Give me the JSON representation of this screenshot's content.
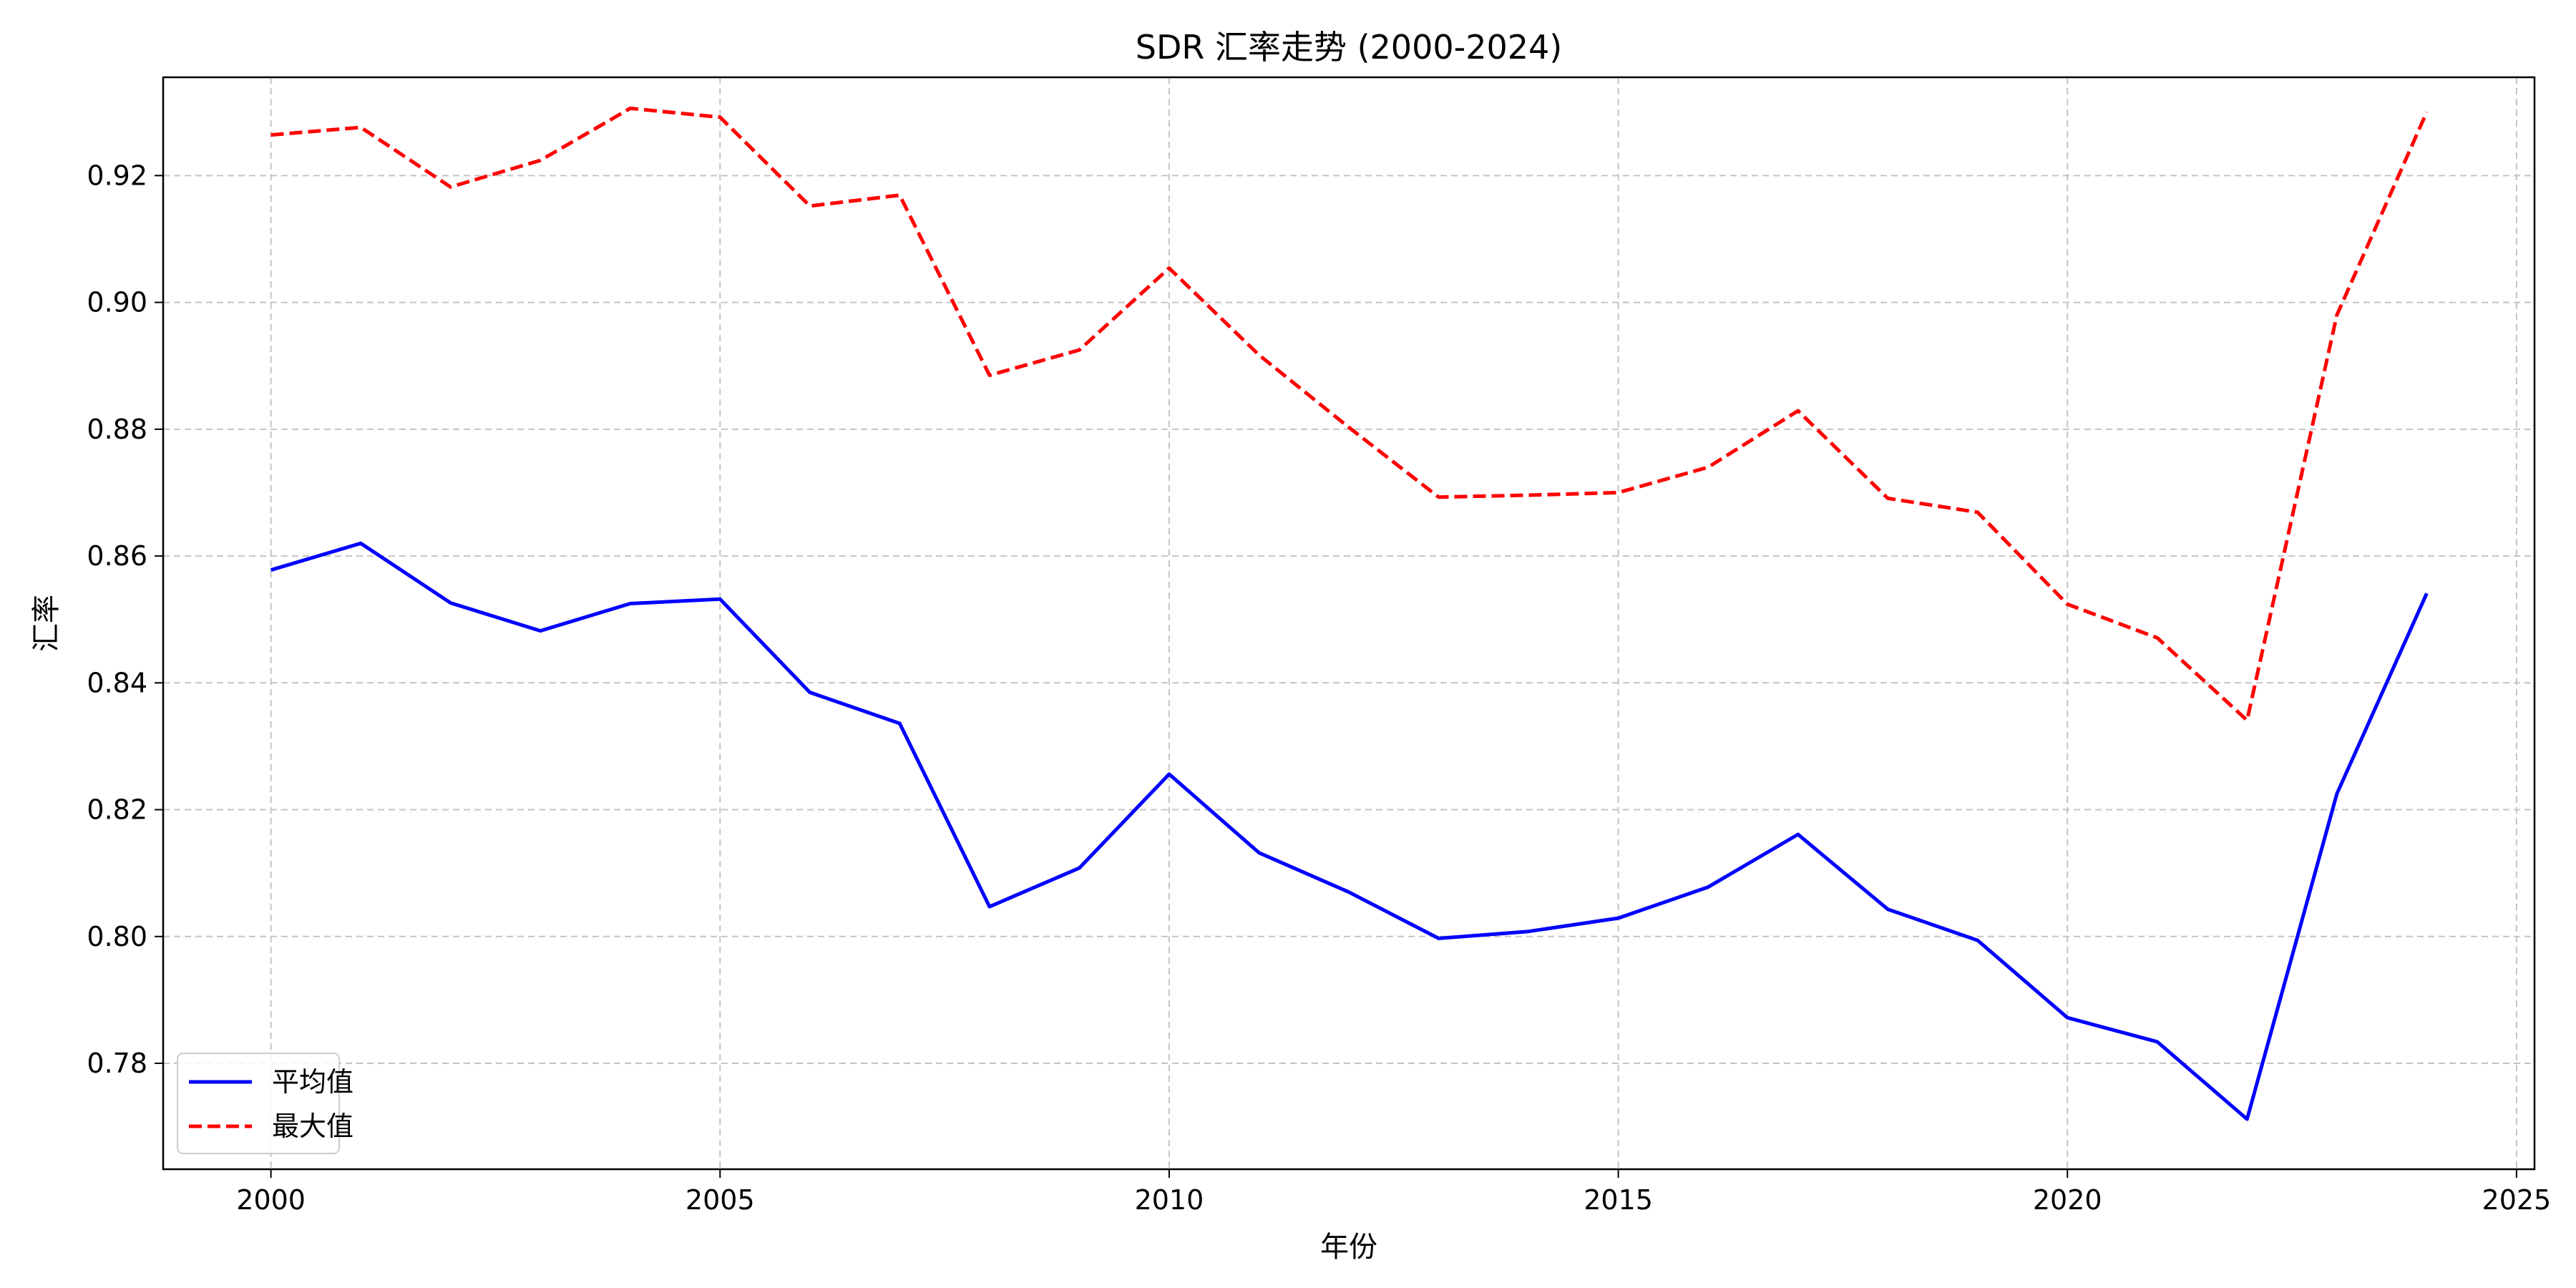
{
  "chart_data": {
    "type": "line",
    "title": "SDR 汇率走势 (2000-2024)",
    "xlabel": "年份",
    "ylabel": "汇率",
    "x": [
      2000,
      2001,
      2002,
      2003,
      2004,
      2005,
      2006,
      2007,
      2008,
      2009,
      2010,
      2011,
      2012,
      2013,
      2014,
      2015,
      2016,
      2017,
      2018,
      2019,
      2020,
      2021,
      2022,
      2023,
      2024
    ],
    "xlim": [
      1998.8,
      2025.2
    ],
    "ylim": [
      0.7633,
      0.9355
    ],
    "xticks": [
      2000,
      2005,
      2010,
      2015,
      2020,
      2025
    ],
    "yticks": [
      0.78,
      0.8,
      0.82,
      0.84,
      0.86,
      0.88,
      0.9,
      0.92
    ],
    "grid": true,
    "legend_position": "lower-left",
    "series": [
      {
        "name": "平均值",
        "color": "#0000ff",
        "line_style": "solid",
        "values": [
          0.8578,
          0.862,
          0.8526,
          0.8482,
          0.8525,
          0.8532,
          0.8385,
          0.8336,
          0.8047,
          0.8108,
          0.8256,
          0.8132,
          0.807,
          0.7997,
          0.8008,
          0.8029,
          0.8078,
          0.8161,
          0.8043,
          0.7994,
          0.7872,
          0.7834,
          0.7712,
          0.8225,
          0.8541
        ]
      },
      {
        "name": "最大值",
        "color": "#ff0000",
        "line_style": "dashed",
        "values": [
          0.9264,
          0.9276,
          0.9182,
          0.9224,
          0.9306,
          0.9292,
          0.9152,
          0.9169,
          0.8885,
          0.8925,
          0.9054,
          0.8917,
          0.8803,
          0.8693,
          0.8696,
          0.87,
          0.874,
          0.8829,
          0.8691,
          0.8669,
          0.8524,
          0.8471,
          0.8341,
          0.898,
          0.93
        ]
      }
    ]
  }
}
